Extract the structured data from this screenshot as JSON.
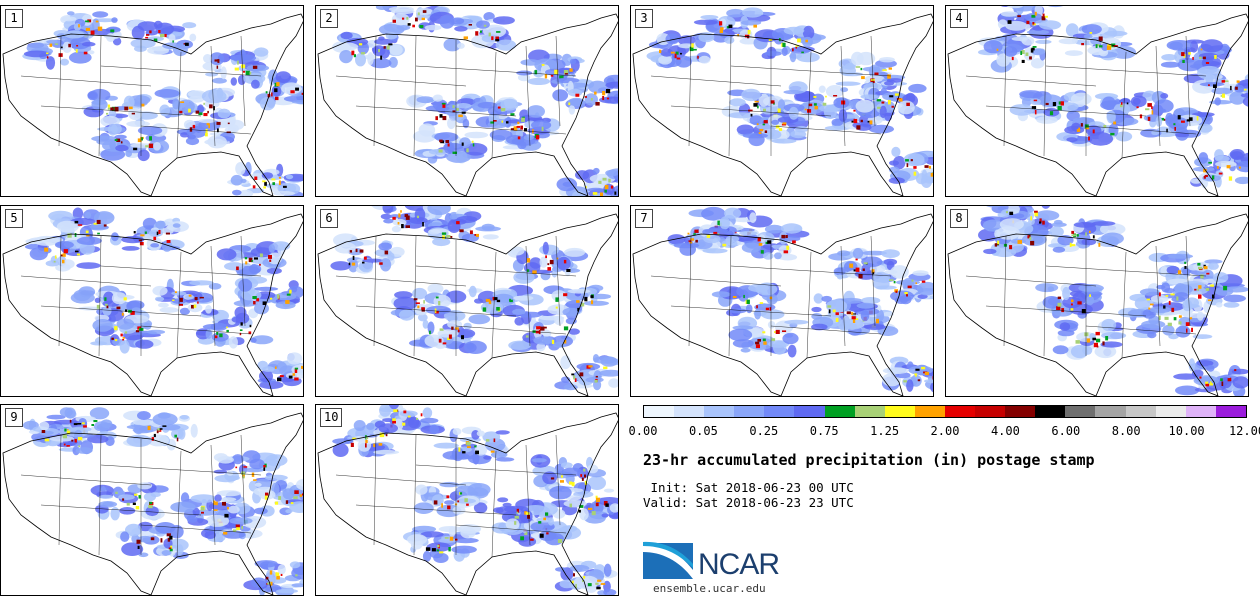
{
  "panels": [
    "1",
    "2",
    "3",
    "4",
    "5",
    "6",
    "7",
    "8",
    "9",
    "10"
  ],
  "colorbar": {
    "colors": [
      "#eef6fe",
      "#d4e3fc",
      "#a9c4fc",
      "#8aa6f9",
      "#7289f8",
      "#5f6af2",
      "#00a023",
      "#a8d176",
      "#fffb1c",
      "#ffa200",
      "#e50000",
      "#c60000",
      "#840000",
      "#000000",
      "#6f6f6f",
      "#a4a4a4",
      "#c7c7c7",
      "#ebebeb",
      "#dfb3f8",
      "#9b1cdc"
    ],
    "tick_labels": [
      "0.00",
      "0.05",
      "0.25",
      "0.75",
      "1.25",
      "2.00",
      "4.00",
      "6.00",
      "8.00",
      "10.00",
      "12.00"
    ]
  },
  "title": "23-hr accumulated precipitation (in) postage stamp",
  "init": " Init: Sat 2018-06-23 00 UTC",
  "valid": "Valid: Sat 2018-06-23 23 UTC",
  "logo": {
    "text": "NCAR",
    "colors": [
      "#1c3f6e",
      "#1fa0d8"
    ]
  },
  "site": "ensemble.ucar.edu"
}
